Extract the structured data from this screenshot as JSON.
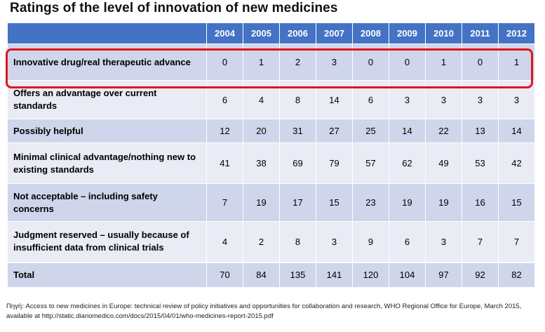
{
  "chart_data": {
    "type": "table",
    "title": "Ratings of the level of innovation of new medicines",
    "columns": [
      "2004",
      "2005",
      "2006",
      "2007",
      "2008",
      "2009",
      "2010",
      "2011",
      "2012"
    ],
    "rows": [
      {
        "label": "Innovative drug/real therapeutic advance",
        "values": [
          "0",
          "1",
          "2",
          "3",
          "0",
          "0",
          "1",
          "0",
          "1"
        ],
        "highlighted": true
      },
      {
        "label": "Offers an advantage over current standards",
        "values": [
          "6",
          "4",
          "8",
          "14",
          "6",
          "3",
          "3",
          "3",
          "3"
        ]
      },
      {
        "label": "Possibly helpful",
        "values": [
          "12",
          "20",
          "31",
          "27",
          "25",
          "14",
          "22",
          "13",
          "14"
        ]
      },
      {
        "label": "Minimal clinical advantage/nothing new to existing standards",
        "values": [
          "41",
          "38",
          "69",
          "79",
          "57",
          "62",
          "49",
          "53",
          "42"
        ]
      },
      {
        "label": "Not acceptable – including safety concerns",
        "values": [
          "7",
          "19",
          "17",
          "15",
          "23",
          "19",
          "19",
          "16",
          "15"
        ]
      },
      {
        "label": "Judgment reserved – usually because of insufficient data from clinical trials",
        "values": [
          "4",
          "2",
          "8",
          "3",
          "9",
          "6",
          "3",
          "7",
          "7"
        ]
      },
      {
        "label": "Total",
        "values": [
          "70",
          "84",
          "135",
          "141",
          "120",
          "104",
          "97",
          "92",
          "82"
        ]
      }
    ],
    "source": "Πηγή: Access to new medicines in Europe: technical review of policy initiatives and opportunities for collaboration and research, WHO Regional Office for Europe, March 2015, available at http://static.diariomedico.com/docs/2015/04/01/who-medicines-report-2015.pdf"
  }
}
